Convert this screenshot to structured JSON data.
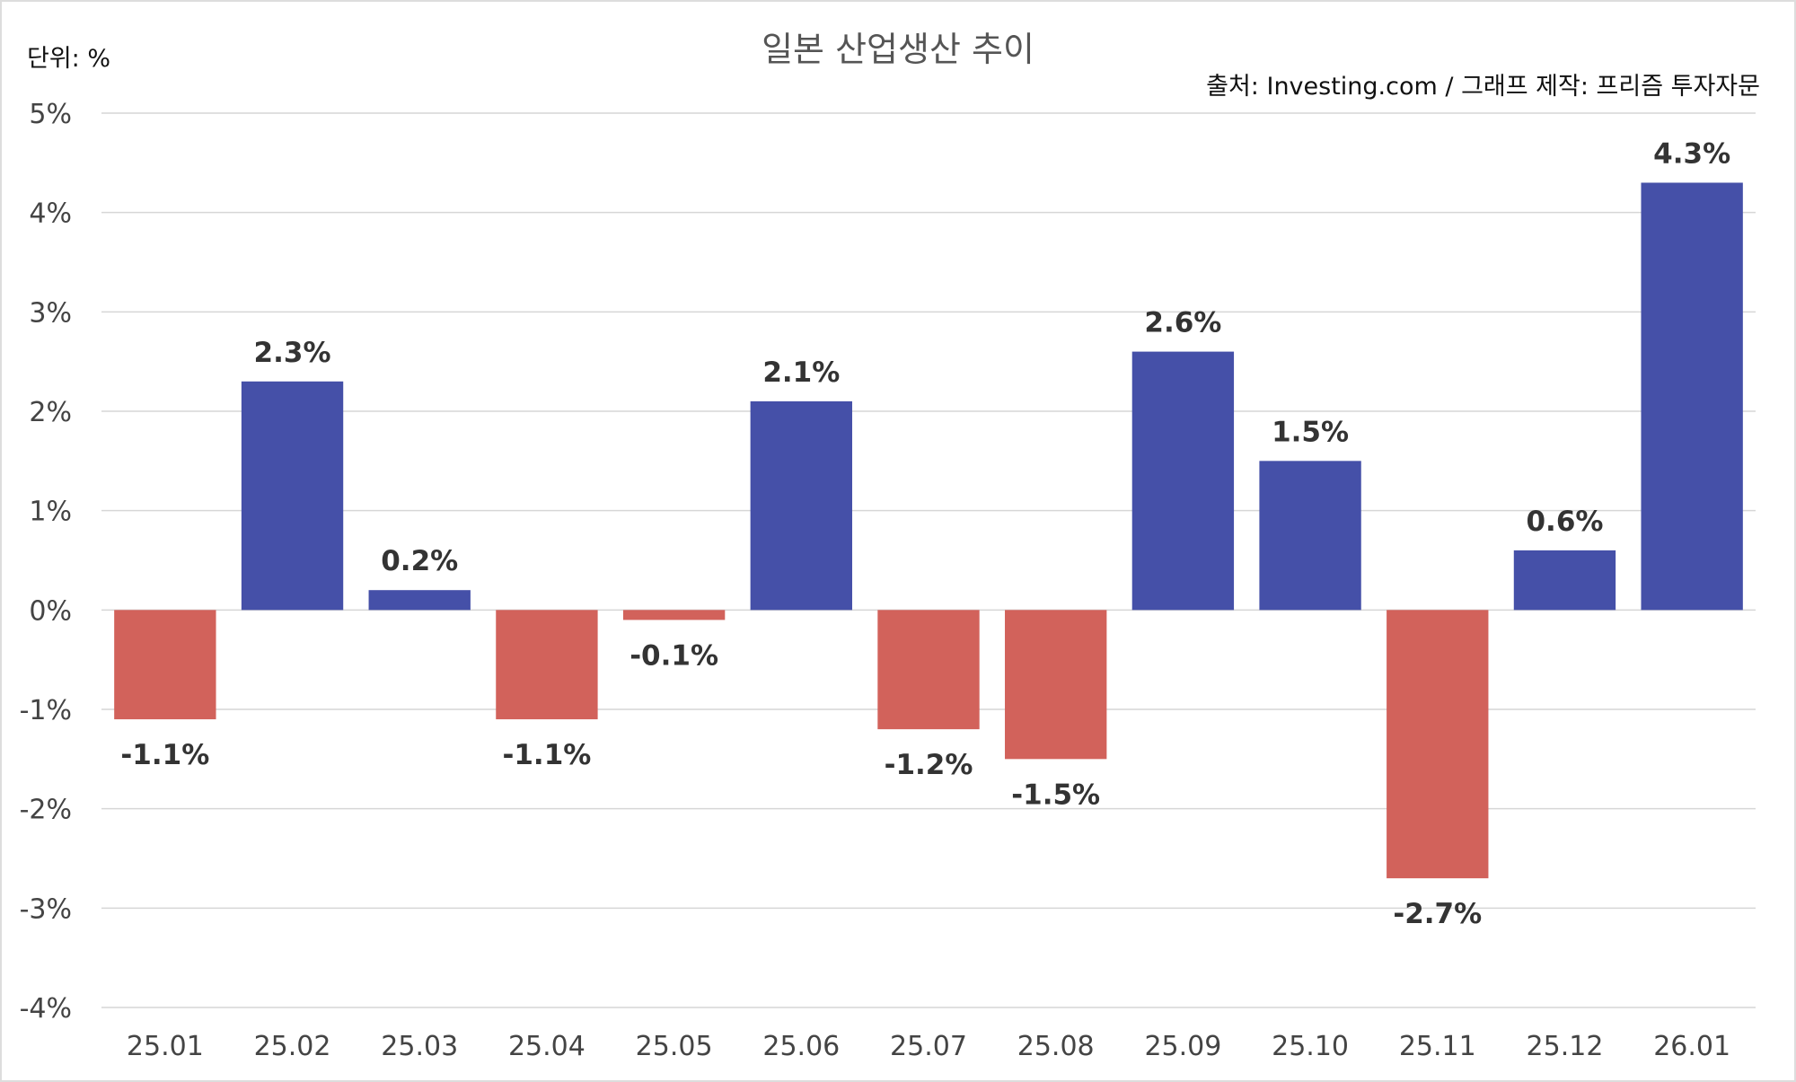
{
  "chart_data": {
    "type": "bar",
    "title": "일본 산업생산 추이",
    "unit_label": "단위: %",
    "source_note": "출처: Investing.com / 그래프 제작: 프리즘 투자자문",
    "categories": [
      "25.01",
      "25.02",
      "25.03",
      "25.04",
      "25.05",
      "25.06",
      "25.07",
      "25.08",
      "25.09",
      "25.10",
      "25.11",
      "25.12",
      "26.01"
    ],
    "values": [
      -1.1,
      2.3,
      0.2,
      -1.1,
      -0.1,
      2.1,
      -1.2,
      -1.5,
      2.6,
      1.5,
      -2.7,
      0.6,
      4.3
    ],
    "data_labels": [
      "-1.1%",
      "2.3%",
      "0.2%",
      "-1.1%",
      "-0.1%",
      "2.1%",
      "-1.2%",
      "-1.5%",
      "2.6%",
      "1.5%",
      "-2.7%",
      "0.6%",
      "4.3%"
    ],
    "ylim": [
      -4,
      5
    ],
    "yticks": [
      5,
      4,
      3,
      2,
      1,
      0,
      -1,
      -2,
      -3,
      -4
    ],
    "ytick_labels": [
      "5%",
      "4%",
      "3%",
      "2%",
      "1%",
      "0%",
      "-1%",
      "-2%",
      "-3%",
      "-4%"
    ],
    "grid": true,
    "legend": "none",
    "colors": {
      "positive": "#4550a8",
      "negative": "#d2625b"
    }
  }
}
